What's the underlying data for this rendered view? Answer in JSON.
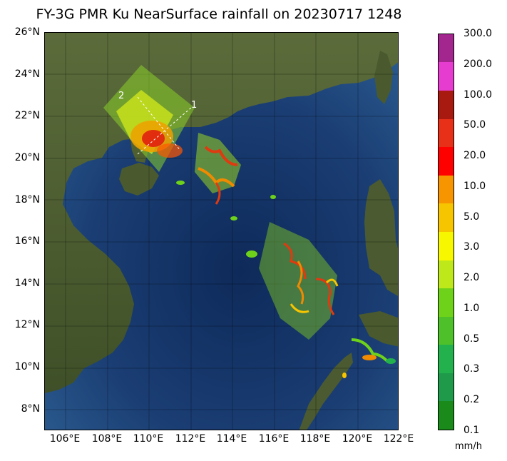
{
  "title": "FY-3G PMR Ku NearSurface rainfall on 20230717 1248",
  "map": {
    "lon_range": [
      105,
      122
    ],
    "lat_range": [
      7,
      26
    ],
    "lat_ticks": [
      "26°N",
      "24°N",
      "22°N",
      "20°N",
      "18°N",
      "16°N",
      "14°N",
      "12°N",
      "10°N",
      "8°N"
    ],
    "lon_ticks": [
      "106°E",
      "108°E",
      "110°E",
      "112°E",
      "114°E",
      "116°E",
      "118°E",
      "120°E",
      "122°E"
    ],
    "swath_labels": [
      "1",
      "2"
    ],
    "colors": {
      "ocean": "#17376b",
      "land": "#4b5a33"
    }
  },
  "colorbar": {
    "unit": "mm/h",
    "labels": [
      "0.1",
      "0.2",
      "0.3",
      "0.5",
      "1.0",
      "2.0",
      "3.0",
      "5.0",
      "10.0",
      "20.0",
      "50.0",
      "100.0",
      "200.0",
      "300.0"
    ],
    "colors": [
      "#1a8a1a",
      "#1e9a4a",
      "#22b14c",
      "#4ec12a",
      "#6fd21a",
      "#bfe81a",
      "#f7f700",
      "#f7c400",
      "#f79500",
      "#ff0000",
      "#e83018",
      "#a81a10",
      "#e63ccf",
      "#a3268f"
    ]
  }
}
